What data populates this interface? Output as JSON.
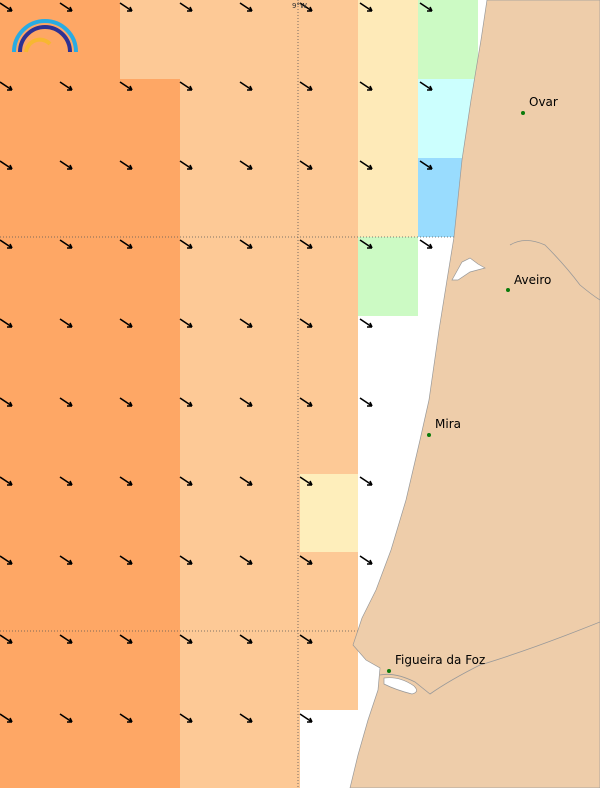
{
  "map": {
    "graticule_label": "9°W",
    "places": [
      {
        "label": "Ovar"
      },
      {
        "label": "Aveiro"
      },
      {
        "label": "Mira"
      },
      {
        "label": "Figueira da Foz"
      }
    ]
  }
}
